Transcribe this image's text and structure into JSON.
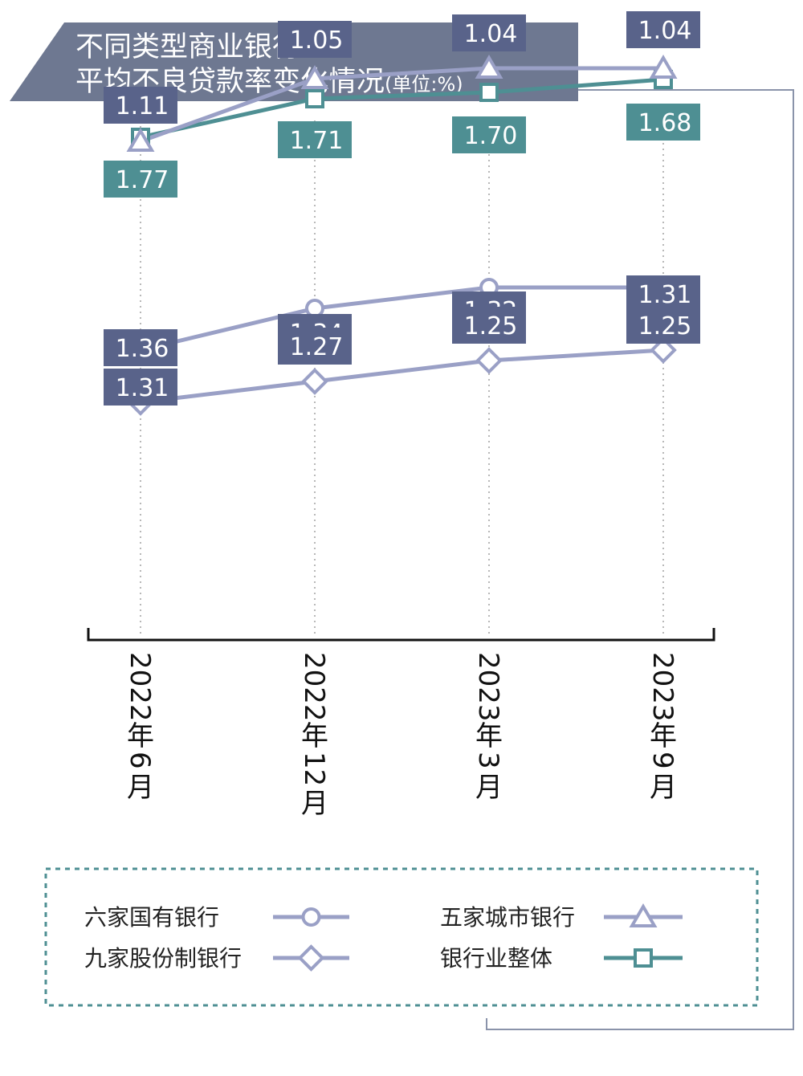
{
  "chart_data": {
    "type": "line",
    "title": "不同类型商业银行",
    "subtitle": "平均不良贷款率变化情况",
    "unit": "(单位:%)",
    "categories": [
      "2022年6月",
      "2022年12月",
      "2023年3月",
      "2023年9月"
    ],
    "series": [
      {
        "name": "银行业整体",
        "marker": "square",
        "color": "#4e8f93",
        "label_color": "#4e8f93",
        "values": [
          1.77,
          1.71,
          1.7,
          1.68
        ]
      },
      {
        "name": "九家股份制银行",
        "marker": "diamond",
        "color": "#9aa0c6",
        "label_color": "#59638a",
        "values": [
          1.36,
          1.34,
          1.32,
          1.31
        ]
      },
      {
        "name": "六家国有银行",
        "marker": "circle",
        "color": "#9aa0c6",
        "label_color": "#59638a",
        "values": [
          1.31,
          1.27,
          1.25,
          1.25
        ]
      },
      {
        "name": "五家城市银行",
        "marker": "triangle",
        "color": "#9aa0c6",
        "label_color": "#59638a",
        "values": [
          1.11,
          1.05,
          1.04,
          1.04
        ]
      }
    ],
    "legend": {
      "placement": "bottom",
      "items": [
        {
          "name": "六家国有银行",
          "marker": "circle"
        },
        {
          "name": "五家城市银行",
          "marker": "triangle"
        },
        {
          "name": "九家股份制银行",
          "marker": "diamond"
        },
        {
          "name": "银行业整体",
          "marker": "square"
        }
      ]
    },
    "grid": "vertical-dotted",
    "colors": {
      "title_bar": "#6e7891",
      "frame_line": "#8a93aa",
      "legend_border": "#4e8f93"
    }
  }
}
